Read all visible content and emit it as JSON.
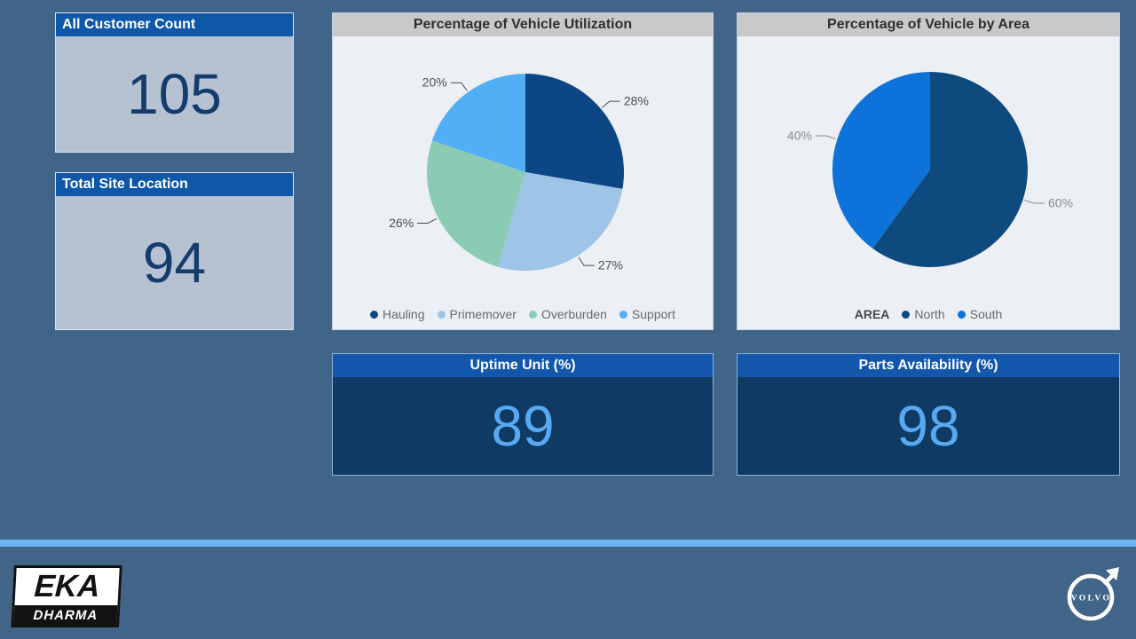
{
  "kpi_cards": {
    "customer_count": {
      "title": "All Customer Count",
      "value": "105"
    },
    "site_location": {
      "title": "Total Site Location",
      "value": "94"
    },
    "uptime": {
      "title": "Uptime Unit (%)",
      "value": "89"
    },
    "parts": {
      "title": "Parts Availability (%)",
      "value": "98"
    }
  },
  "chart_data": [
    {
      "type": "pie",
      "title": "Percentage of Vehicle Utilization",
      "categories": [
        "Hauling",
        "Primemover",
        "Overburden",
        "Support"
      ],
      "values": [
        28,
        27,
        26,
        20
      ],
      "labels": [
        "28%",
        "27%",
        "26%",
        "20%"
      ],
      "colors": [
        "#0d4685",
        "#9ec4e8",
        "#8bcbb4",
        "#52aef5"
      ],
      "label_color": "#4e4e4e",
      "legend_position": "bottom",
      "start_angle_deg": 0,
      "direction": "clockwise"
    },
    {
      "type": "pie",
      "title": "Percentage of Vehicle by Area",
      "legend_title": "AREA",
      "categories": [
        "North",
        "South"
      ],
      "values": [
        60,
        40
      ],
      "labels": [
        "60%",
        "40%"
      ],
      "colors": [
        "#0f4a7f",
        "#0d72d9"
      ],
      "label_color": "#8a8a8a",
      "legend_position": "bottom",
      "start_angle_deg": 0,
      "direction": "clockwise"
    }
  ],
  "footer": {
    "logo_eka": {
      "line1": "EKA",
      "line2": "DHARMA"
    },
    "logo_volvo": "VOLVO"
  },
  "colors": {
    "background": "#416589",
    "kpi_header_blue": "#0f57a8",
    "kpi_light_body": "#b6c2d2",
    "kpi_light_value": "#143c6d",
    "kpi_dark_body": "#0e3a63",
    "kpi_dark_value": "#58a8f2",
    "panel_header_gray": "#c9c9c9",
    "panel_body": "#eceff4",
    "divider_accent": "#6db6f2"
  }
}
